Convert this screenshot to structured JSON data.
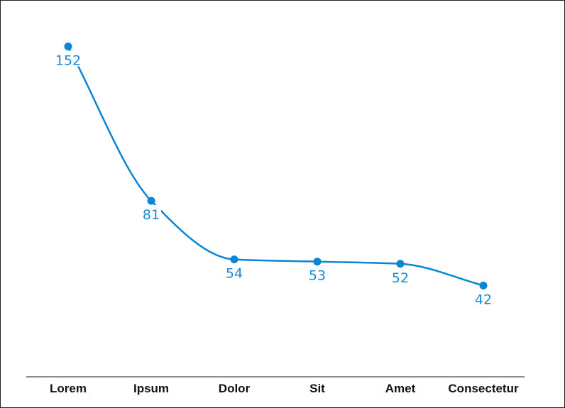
{
  "chart_data": {
    "type": "line",
    "categories": [
      "Lorem",
      "Ipsum",
      "Dolor",
      "Sit",
      "Amet",
      "Consectetur"
    ],
    "series": [
      {
        "values": [
          152,
          81,
          54,
          53,
          52,
          42
        ]
      }
    ],
    "title": "",
    "xlabel": "",
    "ylabel": "",
    "ylim": [
      0,
      160
    ],
    "smooth": true,
    "data_labels": true,
    "grid": false,
    "legend": "none",
    "line_color": "#0a86d2",
    "label_color": "#1a8ad4"
  }
}
